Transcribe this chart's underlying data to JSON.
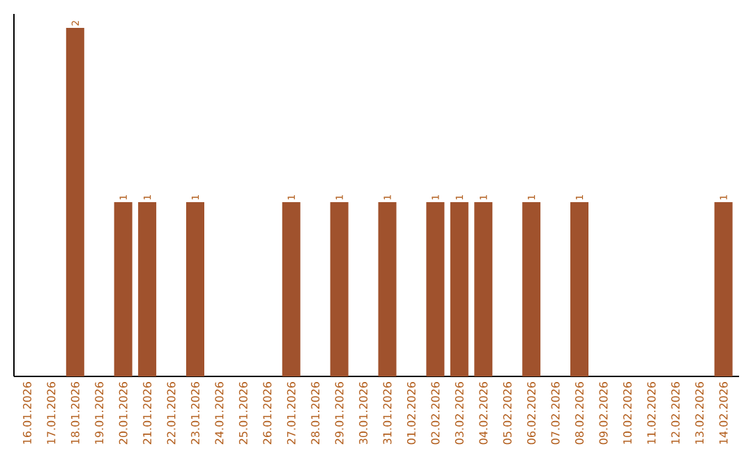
{
  "chart_data": {
    "type": "bar",
    "categories": [
      "16.01.2026",
      "17.01.2026",
      "18.01.2026",
      "19.01.2026",
      "20.01.2026",
      "21.01.2026",
      "22.01.2026",
      "23.01.2026",
      "24.01.2026",
      "25.01.2026",
      "26.01.2026",
      "27.01.2026",
      "28.01.2026",
      "29.01.2026",
      "30.01.2026",
      "31.01.2026",
      "01.02.2026",
      "02.02.2026",
      "03.02.2026",
      "04.02.2026",
      "05.02.2026",
      "06.02.2026",
      "07.02.2026",
      "08.02.2026",
      "09.02.2026",
      "10.02.2026",
      "11.02.2026",
      "12.02.2026",
      "13.02.2026",
      "14.02.2026"
    ],
    "values": [
      0,
      0,
      2,
      0,
      1,
      1,
      0,
      1,
      0,
      0,
      0,
      1,
      0,
      1,
      0,
      1,
      0,
      1,
      1,
      1,
      0,
      1,
      0,
      1,
      0,
      0,
      0,
      0,
      0,
      1
    ],
    "value_labels": [
      null,
      null,
      "2",
      null,
      "1",
      "1",
      null,
      "1",
      null,
      null,
      null,
      "1",
      null,
      "1",
      null,
      "1",
      null,
      "1",
      "1",
      "1",
      null,
      "1",
      null,
      "1",
      null,
      null,
      null,
      null,
      null,
      "1"
    ],
    "color": "#a0522d",
    "tick_labels": "x"
  }
}
